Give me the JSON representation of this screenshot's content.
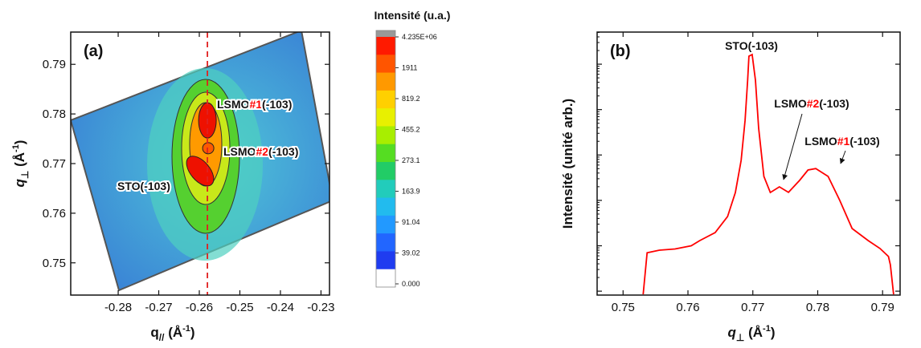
{
  "chart_data": [
    {
      "type": "map",
      "panel": "(a)",
      "xlabel": {
        "q": "q",
        "sub": "//",
        "unit": " (Å",
        "sup": "-1",
        "close": ")"
      },
      "ylabel": {
        "q": "q",
        "sub": "⊥",
        "unit": " (Å",
        "sup": "-1",
        "close": ")"
      },
      "xlim": [
        -0.2917,
        -0.2279
      ],
      "xticks": [
        -0.28,
        -0.27,
        -0.26,
        -0.25,
        -0.24,
        -0.23
      ],
      "ylim": [
        0.7435,
        0.7965
      ],
      "yticks": [
        0.75,
        0.76,
        0.77,
        0.78,
        0.79
      ],
      "vline": -0.258,
      "vline_color": "#e02020",
      "highlight_color": "#ff0000",
      "peaks": [
        {
          "label": [
            "LSMO",
            "#1",
            "(-103)"
          ],
          "x": -0.258,
          "y": 0.7787
        },
        {
          "label": [
            "LSMO",
            "#2",
            "(-103)"
          ],
          "x": -0.2578,
          "y": 0.7731
        },
        {
          "label": [
            "STO(-103)"
          ],
          "x": -0.2598,
          "y": 0.7685
        }
      ],
      "colorbar": {
        "title": "Intensité (u.a.)",
        "ticks": [
          {
            "value": 4235000,
            "label": "4.235E+06"
          },
          1911,
          819.2,
          455.2,
          273.1,
          163.9,
          91.04,
          39.02,
          {
            "value": 0,
            "label": "0.000"
          }
        ],
        "top_color": "#999999",
        "colors": [
          "#ff1a00",
          "#ff5500",
          "#ff9900",
          "#ffd000",
          "#e8f000",
          "#a8ee00",
          "#55dd22",
          "#22cc66",
          "#22ccbb",
          "#22bbee",
          "#2299ff",
          "#2266ff",
          "#1f3cf0",
          "#ffffff"
        ]
      }
    },
    {
      "type": "line",
      "panel": "(b)",
      "xlabel": {
        "q": "q",
        "sub": "⊥",
        "unit": " (Å",
        "sup": "-1",
        "close": ")"
      },
      "ylabel": "Intensité (unité arb.)",
      "xlim": [
        0.746,
        0.7927
      ],
      "xticks": [
        0.75,
        0.76,
        0.77,
        0.78,
        0.79
      ],
      "ylim": [
        0.82,
        510000
      ],
      "yticks": [
        1,
        10,
        100,
        1000,
        10000,
        100000
      ],
      "log_y": true,
      "ytick_labels": false,
      "color": "#ff0000",
      "highlight_color": "#ff0000",
      "x": [
        0.7531,
        0.7537,
        0.7556,
        0.758,
        0.7605,
        0.7618,
        0.7642,
        0.7661,
        0.7673,
        0.7682,
        0.7688,
        0.7692,
        0.7694,
        0.7699,
        0.7704,
        0.7709,
        0.7717,
        0.7727,
        0.7741,
        0.7755,
        0.7772,
        0.7785,
        0.7797,
        0.7816,
        0.7834,
        0.7853,
        0.7878,
        0.7896,
        0.7909,
        0.7912,
        0.7917
      ],
      "values": [
        0.85,
        7.0,
        8.0,
        8.5,
        10,
        13,
        19.5,
        44,
        149,
        760,
        5800,
        44500,
        150000,
        163000,
        44500,
        3870,
        337,
        149,
        199,
        150,
        275,
        467,
        503,
        337,
        100,
        24,
        13,
        8.7,
        5.8,
        3.8,
        0.85
      ],
      "annotations": [
        [
          "STO(-103)"
        ],
        [
          "LSMO",
          "#2",
          "(-103)"
        ],
        [
          "LSMO",
          "#1",
          "(-103)"
        ]
      ]
    }
  ]
}
